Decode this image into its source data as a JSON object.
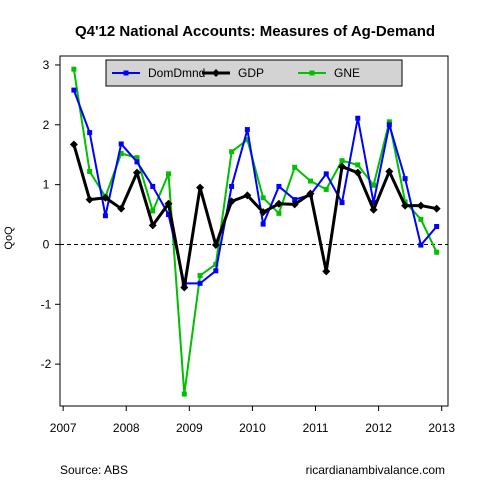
{
  "chart_data": {
    "type": "line",
    "title": "Q4'12 National Accounts: Measures of Ag-Demand",
    "ylabel": "QoQ",
    "xlabel": "",
    "ylim": [
      -2.7,
      3.15
    ],
    "xlim": [
      2006.95,
      2013.1
    ],
    "yticks": [
      -2,
      -1,
      0,
      1,
      2,
      3
    ],
    "xticks": [
      2007,
      2008,
      2009,
      2010,
      2011,
      2012,
      2013
    ],
    "grid": false,
    "reference_line": 0,
    "legend": "top",
    "x": [
      2007.17,
      2007.42,
      2007.67,
      2007.92,
      2008.17,
      2008.42,
      2008.67,
      2008.92,
      2009.17,
      2009.42,
      2009.67,
      2009.92,
      2010.17,
      2010.42,
      2010.67,
      2010.92,
      2011.17,
      2011.42,
      2011.67,
      2011.92,
      2012.17,
      2012.42,
      2012.67,
      2012.92
    ],
    "series": [
      {
        "name": "DomDmnd",
        "color": "#0000ff",
        "marker": "square",
        "values": [
          2.58,
          1.87,
          0.48,
          1.68,
          1.38,
          0.97,
          0.5,
          -0.65,
          -0.65,
          -0.44,
          0.97,
          1.92,
          0.34,
          0.97,
          0.75,
          0.83,
          1.18,
          0.7,
          2.11,
          0.7,
          2.0,
          1.1,
          -0.01,
          0.3
        ]
      },
      {
        "name": "GDP",
        "color": "#000000",
        "marker": "diamond",
        "values": [
          1.67,
          0.75,
          0.78,
          0.6,
          1.2,
          0.32,
          0.68,
          -0.72,
          0.95,
          -0.01,
          0.72,
          0.82,
          0.54,
          0.68,
          0.67,
          0.85,
          -0.45,
          1.3,
          1.2,
          0.58,
          1.22,
          0.65,
          0.65,
          0.6
        ]
      },
      {
        "name": "GNE",
        "color": "#00c000",
        "marker": "square",
        "values": [
          2.93,
          1.22,
          0.8,
          1.52,
          1.45,
          0.56,
          1.18,
          -2.5,
          -0.52,
          -0.33,
          1.55,
          1.75,
          0.78,
          0.52,
          1.29,
          1.06,
          0.92,
          1.4,
          1.33,
          0.99,
          2.05,
          0.71,
          0.42,
          -0.13
        ]
      }
    ]
  },
  "footer": {
    "source": "Source: ABS",
    "site": "ricardianambivalance.com"
  },
  "colors": {
    "legend_bg": "#d3d3d3",
    "zero_line": "#000000"
  }
}
